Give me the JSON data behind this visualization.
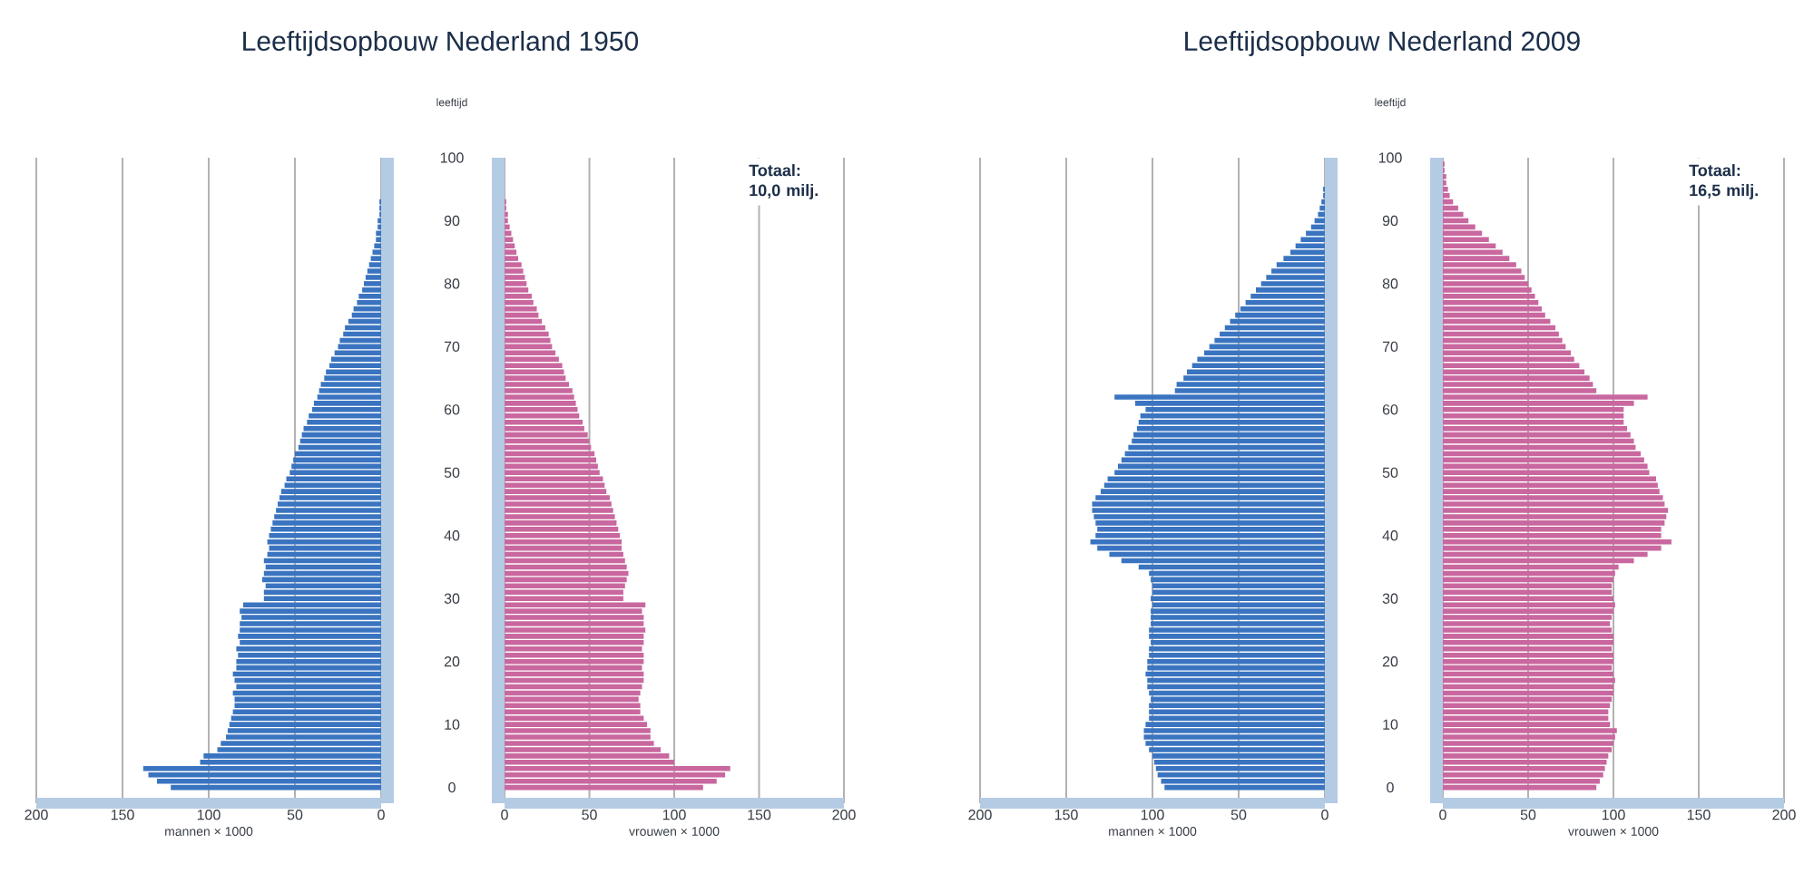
{
  "chart_data": [
    {
      "type": "bar",
      "orientation": "horizontal",
      "title": "Leeftijdsopbouw Nederland 1950",
      "xlabel": "mannen    × 1000",
      "color": "#3a74c0",
      "xlim": [
        200,
        0
      ],
      "xticks": [
        200,
        150,
        100,
        50,
        0
      ],
      "ylim": [
        -2.5,
        100
      ],
      "yticks": [
        0,
        10,
        20,
        30,
        40,
        50,
        60,
        70,
        80,
        90,
        100
      ],
      "grid": "x",
      "tick_labels": "x",
      "x": [
        0,
        1,
        2,
        3,
        4,
        5,
        6,
        7,
        8,
        9,
        10,
        11,
        12,
        13,
        14,
        15,
        16,
        17,
        18,
        19,
        20,
        21,
        22,
        23,
        24,
        25,
        26,
        27,
        28,
        29,
        30,
        31,
        32,
        33,
        34,
        35,
        36,
        37,
        38,
        39,
        40,
        41,
        42,
        43,
        44,
        45,
        46,
        47,
        48,
        49,
        50,
        51,
        52,
        53,
        54,
        55,
        56,
        57,
        58,
        59,
        60,
        61,
        62,
        63,
        64,
        65,
        66,
        67,
        68,
        69,
        70,
        71,
        72,
        73,
        74,
        75,
        76,
        77,
        78,
        79,
        80,
        81,
        82,
        83,
        84,
        85,
        86,
        87,
        88,
        89,
        90,
        91,
        92,
        93
      ],
      "values": [
        122,
        130,
        135,
        138,
        105,
        103,
        95,
        93,
        90,
        89,
        88,
        87,
        86,
        85,
        85,
        86,
        84,
        85,
        86,
        84,
        84,
        83,
        84,
        82,
        83,
        82,
        82,
        81,
        82,
        80,
        68,
        68,
        67,
        69,
        68,
        67,
        68,
        66,
        65,
        66,
        65,
        64,
        63,
        62,
        61,
        60,
        59,
        58,
        56,
        55,
        53,
        52,
        51,
        50,
        48,
        47,
        46,
        45,
        43,
        42,
        40,
        39,
        37,
        36,
        35,
        33,
        32,
        30,
        29,
        27,
        25,
        24,
        22,
        21,
        19,
        17,
        16,
        14,
        13,
        11,
        10,
        9,
        8,
        7,
        6,
        5,
        4,
        3,
        3,
        2,
        2,
        1,
        1,
        1
      ]
    },
    {
      "type": "bar",
      "orientation": "horizontal",
      "xlabel": "vrouwen    × 1000",
      "ylabel": "leeftijd",
      "annotations": [
        "Totaal: 10,0 milj."
      ],
      "color": "#c9679f",
      "xlim": [
        0,
        200
      ],
      "xticks": [
        0,
        50,
        100,
        150,
        200
      ],
      "ylim": [
        -2.5,
        100
      ],
      "yticks": [
        0,
        10,
        20,
        30,
        40,
        50,
        60,
        70,
        80,
        90,
        100
      ],
      "grid": "x",
      "x": [
        0,
        1,
        2,
        3,
        4,
        5,
        6,
        7,
        8,
        9,
        10,
        11,
        12,
        13,
        14,
        15,
        16,
        17,
        18,
        19,
        20,
        21,
        22,
        23,
        24,
        25,
        26,
        27,
        28,
        29,
        30,
        31,
        32,
        33,
        34,
        35,
        36,
        37,
        38,
        39,
        40,
        41,
        42,
        43,
        44,
        45,
        46,
        47,
        48,
        49,
        50,
        51,
        52,
        53,
        54,
        55,
        56,
        57,
        58,
        59,
        60,
        61,
        62,
        63,
        64,
        65,
        66,
        67,
        68,
        69,
        70,
        71,
        72,
        73,
        74,
        75,
        76,
        77,
        78,
        79,
        80,
        81,
        82,
        83,
        84,
        85,
        86,
        87,
        88,
        89,
        90,
        91,
        92,
        93
      ],
      "values": [
        117,
        125,
        130,
        133,
        100,
        97,
        92,
        88,
        86,
        86,
        84,
        82,
        80,
        80,
        79,
        80,
        81,
        82,
        82,
        81,
        82,
        82,
        81,
        82,
        82,
        83,
        82,
        82,
        81,
        83,
        70,
        70,
        71,
        72,
        73,
        72,
        71,
        70,
        69,
        69,
        68,
        67,
        66,
        65,
        64,
        63,
        62,
        60,
        59,
        58,
        56,
        55,
        54,
        53,
        51,
        50,
        49,
        47,
        46,
        44,
        43,
        42,
        41,
        40,
        38,
        36,
        35,
        34,
        32,
        30,
        28,
        27,
        26,
        24,
        22,
        20,
        19,
        17,
        16,
        14,
        13,
        12,
        11,
        10,
        8,
        7,
        6,
        5,
        4,
        3,
        2,
        2,
        1,
        1
      ]
    },
    {
      "type": "bar",
      "orientation": "horizontal",
      "title": "Leeftijdsopbouw Nederland 2009",
      "xlabel": "mannen    × 1000",
      "color": "#3a74c0",
      "xlim": [
        200,
        0
      ],
      "xticks": [
        200,
        150,
        100,
        50,
        0
      ],
      "ylim": [
        -2.5,
        100
      ],
      "yticks": [
        0,
        10,
        20,
        30,
        40,
        50,
        60,
        70,
        80,
        90,
        100
      ],
      "grid": "x",
      "tick_labels": "x",
      "x": [
        0,
        1,
        2,
        3,
        4,
        5,
        6,
        7,
        8,
        9,
        10,
        11,
        12,
        13,
        14,
        15,
        16,
        17,
        18,
        19,
        20,
        21,
        22,
        23,
        24,
        25,
        26,
        27,
        28,
        29,
        30,
        31,
        32,
        33,
        34,
        35,
        36,
        37,
        38,
        39,
        40,
        41,
        42,
        43,
        44,
        45,
        46,
        47,
        48,
        49,
        50,
        51,
        52,
        53,
        54,
        55,
        56,
        57,
        58,
        59,
        60,
        61,
        62,
        63,
        64,
        65,
        66,
        67,
        68,
        69,
        70,
        71,
        72,
        73,
        74,
        75,
        76,
        77,
        78,
        79,
        80,
        81,
        82,
        83,
        84,
        85,
        86,
        87,
        88,
        89,
        90,
        91,
        92,
        93,
        94,
        95
      ],
      "values": [
        93,
        95,
        97,
        98,
        99,
        100,
        102,
        104,
        105,
        105,
        104,
        102,
        102,
        102,
        101,
        102,
        103,
        103,
        104,
        103,
        103,
        102,
        102,
        101,
        102,
        102,
        101,
        101,
        101,
        100,
        101,
        100,
        100,
        101,
        102,
        108,
        118,
        125,
        132,
        136,
        133,
        132,
        133,
        134,
        135,
        135,
        133,
        130,
        128,
        126,
        122,
        120,
        118,
        116,
        114,
        112,
        111,
        109,
        108,
        107,
        104,
        110,
        122,
        87,
        86,
        82,
        80,
        77,
        74,
        70,
        67,
        64,
        61,
        58,
        55,
        52,
        49,
        46,
        43,
        40,
        37,
        34,
        31,
        28,
        24,
        20,
        17,
        14,
        11,
        8,
        6,
        4,
        3,
        2,
        1,
        1
      ]
    },
    {
      "type": "bar",
      "orientation": "horizontal",
      "xlabel": "vrouwen    × 1000",
      "ylabel": "leeftijd",
      "annotations": [
        "Totaal: 16,5 milj."
      ],
      "color": "#c9679f",
      "xlim": [
        0,
        200
      ],
      "xticks": [
        0,
        50,
        100,
        150,
        200
      ],
      "ylim": [
        -2.5,
        100
      ],
      "yticks": [
        0,
        10,
        20,
        30,
        40,
        50,
        60,
        70,
        80,
        90,
        100
      ],
      "grid": "x",
      "x": [
        0,
        1,
        2,
        3,
        4,
        5,
        6,
        7,
        8,
        9,
        10,
        11,
        12,
        13,
        14,
        15,
        16,
        17,
        18,
        19,
        20,
        21,
        22,
        23,
        24,
        25,
        26,
        27,
        28,
        29,
        30,
        31,
        32,
        33,
        34,
        35,
        36,
        37,
        38,
        39,
        40,
        41,
        42,
        43,
        44,
        45,
        46,
        47,
        48,
        49,
        50,
        51,
        52,
        53,
        54,
        55,
        56,
        57,
        58,
        59,
        60,
        61,
        62,
        63,
        64,
        65,
        66,
        67,
        68,
        69,
        70,
        71,
        72,
        73,
        74,
        75,
        76,
        77,
        78,
        79,
        80,
        81,
        82,
        83,
        84,
        85,
        86,
        87,
        88,
        89,
        90,
        91,
        92,
        93,
        94,
        95,
        96,
        97,
        98,
        99
      ],
      "values": [
        90,
        92,
        94,
        95,
        96,
        97,
        99,
        100,
        101,
        102,
        98,
        97,
        97,
        98,
        99,
        100,
        100,
        101,
        100,
        99,
        100,
        100,
        99,
        100,
        100,
        99,
        98,
        99,
        100,
        101,
        100,
        99,
        99,
        100,
        101,
        103,
        112,
        120,
        128,
        134,
        128,
        128,
        130,
        131,
        132,
        130,
        129,
        127,
        126,
        125,
        121,
        120,
        118,
        116,
        113,
        112,
        110,
        108,
        106,
        106,
        106,
        112,
        120,
        90,
        88,
        86,
        83,
        80,
        77,
        75,
        72,
        70,
        68,
        66,
        63,
        60,
        58,
        56,
        54,
        52,
        50,
        48,
        46,
        43,
        39,
        35,
        31,
        27,
        23,
        19,
        15,
        12,
        9,
        6,
        4,
        3,
        2,
        2,
        1,
        1
      ]
    }
  ]
}
